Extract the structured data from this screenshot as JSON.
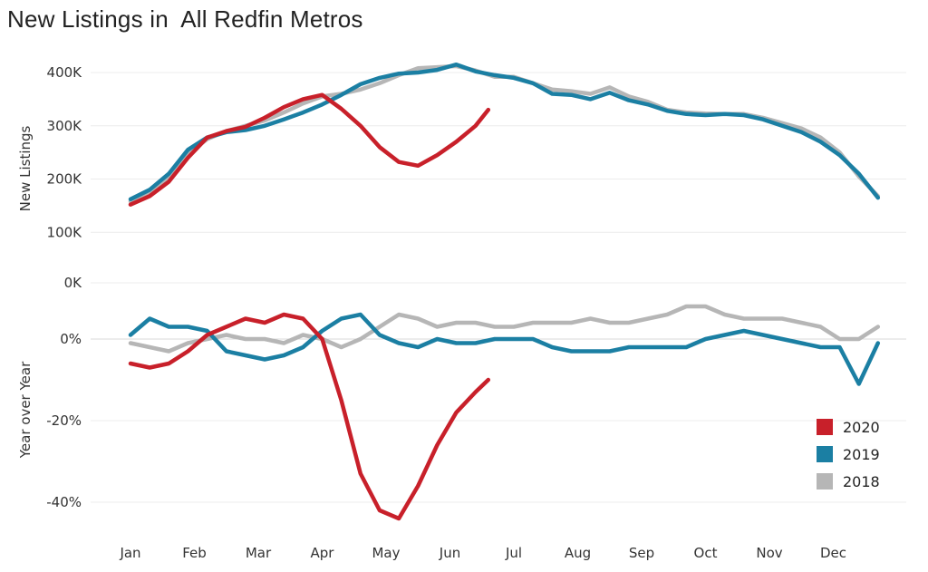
{
  "title": "New Listings in  All Redfin Metros",
  "colors": {
    "2020": "#c8202a",
    "2019": "#1b7fa3",
    "2018": "#b6b6b6"
  },
  "chart_data": [
    {
      "type": "line",
      "ylabel": "New Listings",
      "yticks": [
        "0K",
        "100K",
        "200K",
        "300K",
        "400K"
      ],
      "ylim": [
        0,
        420000
      ],
      "grid": true,
      "x_ticks": [
        "Jan",
        "Feb",
        "Mar",
        "Apr",
        "May",
        "Jun",
        "Jul",
        "Aug",
        "Sep",
        "Oct",
        "Nov",
        "Dec"
      ],
      "series": [
        {
          "name": "2020",
          "x": [
            0,
            0.3,
            0.6,
            0.9,
            1.2,
            1.5,
            1.8,
            2.1,
            2.4,
            2.7,
            3.0,
            3.3,
            3.6,
            3.9,
            4.2,
            4.5,
            4.8,
            5.1,
            5.4,
            5.6
          ],
          "values": [
            152000,
            168000,
            195000,
            240000,
            278000,
            290000,
            298000,
            315000,
            335000,
            350000,
            358000,
            332000,
            300000,
            260000,
            232000,
            225000,
            245000,
            270000,
            300000,
            330000
          ]
        },
        {
          "name": "2019",
          "x": [
            0,
            0.3,
            0.6,
            0.9,
            1.2,
            1.5,
            1.8,
            2.1,
            2.4,
            2.7,
            3.0,
            3.3,
            3.6,
            3.9,
            4.2,
            4.5,
            4.8,
            5.1,
            5.4,
            5.7,
            6.0,
            6.3,
            6.6,
            6.9,
            7.2,
            7.5,
            7.8,
            8.1,
            8.4,
            8.7,
            9.0,
            9.3,
            9.6,
            9.9,
            10.2,
            10.5,
            10.8,
            11.1,
            11.4,
            11.7
          ],
          "values": [
            162000,
            180000,
            210000,
            255000,
            278000,
            288000,
            292000,
            300000,
            312000,
            325000,
            340000,
            358000,
            378000,
            390000,
            398000,
            400000,
            405000,
            415000,
            402000,
            395000,
            390000,
            380000,
            360000,
            358000,
            350000,
            362000,
            348000,
            340000,
            328000,
            322000,
            320000,
            322000,
            320000,
            312000,
            300000,
            288000,
            270000,
            245000,
            210000,
            165000
          ]
        },
        {
          "name": "2018",
          "x": [
            0,
            0.3,
            0.6,
            0.9,
            1.2,
            1.5,
            1.8,
            2.1,
            2.4,
            2.7,
            3.0,
            3.3,
            3.6,
            3.9,
            4.2,
            4.5,
            4.8,
            5.1,
            5.4,
            5.7,
            6.0,
            6.3,
            6.6,
            6.9,
            7.2,
            7.5,
            7.8,
            8.1,
            8.4,
            8.7,
            9.0,
            9.3,
            9.6,
            9.9,
            10.2,
            10.5,
            10.8,
            11.1,
            11.4,
            11.7
          ],
          "values": [
            158000,
            175000,
            205000,
            248000,
            275000,
            290000,
            300000,
            310000,
            325000,
            342000,
            355000,
            360000,
            368000,
            380000,
            395000,
            408000,
            410000,
            412000,
            404000,
            392000,
            392000,
            380000,
            368000,
            365000,
            360000,
            372000,
            355000,
            345000,
            330000,
            325000,
            323000,
            322000,
            322000,
            315000,
            305000,
            295000,
            278000,
            250000,
            205000,
            168000
          ]
        }
      ]
    },
    {
      "type": "line",
      "ylabel": "Year over Year",
      "yticks": [
        "-40%",
        "-20%",
        "0%"
      ],
      "ylim": [
        -46,
        8
      ],
      "grid": true,
      "x_ticks": [
        "Jan",
        "Feb",
        "Mar",
        "Apr",
        "May",
        "Jun",
        "Jul",
        "Aug",
        "Sep",
        "Oct",
        "Nov",
        "Dec"
      ],
      "series": [
        {
          "name": "2020",
          "x": [
            0,
            0.3,
            0.6,
            0.9,
            1.2,
            1.5,
            1.8,
            2.1,
            2.4,
            2.7,
            3.0,
            3.3,
            3.6,
            3.9,
            4.2,
            4.5,
            4.8,
            5.1,
            5.4,
            5.6
          ],
          "values": [
            -6,
            -7,
            -6,
            -3,
            1,
            3,
            5,
            4,
            6,
            5,
            0,
            -15,
            -33,
            -42,
            -44,
            -36,
            -26,
            -18,
            -13,
            -10
          ]
        },
        {
          "name": "2019",
          "x": [
            0,
            0.3,
            0.6,
            0.9,
            1.2,
            1.5,
            1.8,
            2.1,
            2.4,
            2.7,
            3.0,
            3.3,
            3.6,
            3.9,
            4.2,
            4.5,
            4.8,
            5.1,
            5.4,
            5.7,
            6.0,
            6.3,
            6.6,
            6.9,
            7.2,
            7.5,
            7.8,
            8.1,
            8.4,
            8.7,
            9.0,
            9.3,
            9.6,
            9.9,
            10.2,
            10.5,
            10.8,
            11.1,
            11.4,
            11.7
          ],
          "values": [
            1,
            5,
            3,
            3,
            2,
            -3,
            -4,
            -5,
            -4,
            -2,
            2,
            5,
            6,
            1,
            -1,
            -2,
            0,
            -1,
            -1,
            0,
            0,
            0,
            -2,
            -3,
            -3,
            -3,
            -2,
            -2,
            -2,
            -2,
            0,
            1,
            2,
            1,
            0,
            -1,
            -2,
            -2,
            -11,
            -1
          ]
        },
        {
          "name": "2018",
          "x": [
            0,
            0.3,
            0.6,
            0.9,
            1.2,
            1.5,
            1.8,
            2.1,
            2.4,
            2.7,
            3.0,
            3.3,
            3.6,
            3.9,
            4.2,
            4.5,
            4.8,
            5.1,
            5.4,
            5.7,
            6.0,
            6.3,
            6.6,
            6.9,
            7.2,
            7.5,
            7.8,
            8.1,
            8.4,
            8.7,
            9.0,
            9.3,
            9.6,
            9.9,
            10.2,
            10.5,
            10.8,
            11.1,
            11.4,
            11.7
          ],
          "values": [
            -1,
            -2,
            -3,
            -1,
            0,
            1,
            0,
            0,
            -1,
            1,
            0,
            -2,
            0,
            3,
            6,
            5,
            3,
            4,
            4,
            3,
            3,
            4,
            4,
            4,
            5,
            4,
            4,
            5,
            6,
            8,
            8,
            6,
            5,
            5,
            5,
            4,
            3,
            0,
            0,
            3
          ]
        }
      ]
    }
  ],
  "legend": [
    {
      "label": "2020"
    },
    {
      "label": "2019"
    },
    {
      "label": "2018"
    }
  ]
}
